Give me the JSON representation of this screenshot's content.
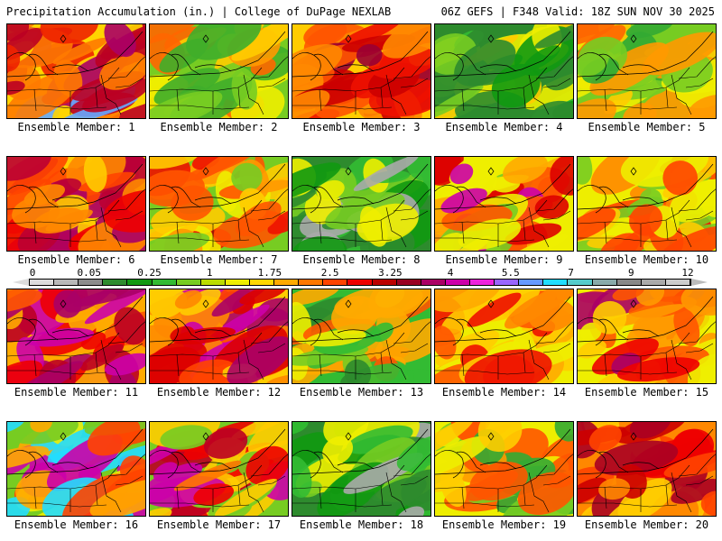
{
  "header": {
    "title": "Precipitation Accumulation (in.) | College of DuPage NEXLAB",
    "run_info": "06Z GEFS | F348 Valid: 18Z SUN NOV 30 2025"
  },
  "legend": {
    "ticks": [
      "0",
      "0.05",
      "0.25",
      "1",
      "1.75",
      "2.5",
      "3.25",
      "4",
      "5.5",
      "7",
      "9",
      "12"
    ],
    "colors": [
      "#dcdcdc",
      "#b8b8b8",
      "#8c8c8c",
      "#2e8b2e",
      "#119911",
      "#33bb33",
      "#77cc22",
      "#bbdd00",
      "#eeee00",
      "#ffd700",
      "#ffaa00",
      "#ff7700",
      "#ff4400",
      "#ee0000",
      "#bb0000",
      "#990022",
      "#aa0066",
      "#cc00aa",
      "#ee22dd",
      "#9966ff",
      "#6699ff",
      "#22ddff",
      "#55cccc",
      "#88aaaa",
      "#888888",
      "#aaaaaa",
      "#cccccc"
    ]
  },
  "members": [
    {
      "label": "Ensemble Member: 1",
      "palette": [
        "#ffd500",
        "#ff7a00",
        "#ee2200",
        "#bb0022",
        "#aa0066",
        "#66aaff"
      ]
    },
    {
      "label": "Ensemble Member: 2",
      "palette": [
        "#77cc22",
        "#3fae2a",
        "#eeee00",
        "#ffcc00",
        "#ff9900",
        "#ff6600"
      ]
    },
    {
      "label": "Ensemble Member: 3",
      "palette": [
        "#ffcc00",
        "#ff8800",
        "#ff5500",
        "#ee1100",
        "#cc0000",
        "#990033"
      ]
    },
    {
      "label": "Ensemble Member: 4",
      "palette": [
        "#2e8b2e",
        "#119911",
        "#33bb33",
        "#77cc22",
        "#eeee00",
        "#ffcc00"
      ]
    },
    {
      "label": "Ensemble Member: 5",
      "palette": [
        "#77cc22",
        "#33aa33",
        "#eeee00",
        "#ffcc00",
        "#ff9900",
        "#ff6600"
      ]
    },
    {
      "label": "Ensemble Member: 6",
      "palette": [
        "#ffcc00",
        "#ff8800",
        "#ff4400",
        "#ee0000",
        "#bb0033",
        "#aa0066"
      ]
    },
    {
      "label": "Ensemble Member: 7",
      "palette": [
        "#77cc22",
        "#eeee00",
        "#ffcc00",
        "#ff9900",
        "#ff5500",
        "#ee1100"
      ]
    },
    {
      "label": "Ensemble Member: 8",
      "palette": [
        "#2e8b2e",
        "#119911",
        "#33bb33",
        "#77cc22",
        "#aaaaaa",
        "#eeee00"
      ]
    },
    {
      "label": "Ensemble Member: 9",
      "palette": [
        "#eeee00",
        "#77cc22",
        "#ffaa00",
        "#ff5500",
        "#dd0000",
        "#cc00aa"
      ]
    },
    {
      "label": "Ensemble Member: 10",
      "palette": [
        "#eeee00",
        "#ffcc00",
        "#77cc22",
        "#ff8800",
        "#ff4400",
        "#ee0000"
      ]
    },
    {
      "label": "Ensemble Member: 11",
      "palette": [
        "#ffaa00",
        "#ff5500",
        "#ee0000",
        "#bb0022",
        "#aa0066",
        "#cc00aa"
      ]
    },
    {
      "label": "Ensemble Member: 12",
      "palette": [
        "#ffcc00",
        "#ff8800",
        "#ff4400",
        "#dd0000",
        "#aa0066",
        "#cc00aa"
      ]
    },
    {
      "label": "Ensemble Member: 13",
      "palette": [
        "#33bb33",
        "#2e8b2e",
        "#77cc22",
        "#eeee00",
        "#ffaa00",
        "#ff5500"
      ]
    },
    {
      "label": "Ensemble Member: 14",
      "palette": [
        "#eeee00",
        "#ffcc00",
        "#ffaa00",
        "#ff8800",
        "#ff5500",
        "#ee1100"
      ]
    },
    {
      "label": "Ensemble Member: 15",
      "palette": [
        "#eeee00",
        "#ffcc00",
        "#ff9900",
        "#ff5500",
        "#ee0000",
        "#aa0066"
      ]
    },
    {
      "label": "Ensemble Member: 16",
      "palette": [
        "#77cc22",
        "#eeee00",
        "#ffaa00",
        "#ff4400",
        "#cc00aa",
        "#22ddff"
      ]
    },
    {
      "label": "Ensemble Member: 17",
      "palette": [
        "#77cc22",
        "#ffcc00",
        "#ff7700",
        "#ee0000",
        "#bb0022",
        "#cc00aa"
      ]
    },
    {
      "label": "Ensemble Member: 18",
      "palette": [
        "#2e8b2e",
        "#119911",
        "#33bb33",
        "#77cc22",
        "#aaaaaa",
        "#eeee00"
      ]
    },
    {
      "label": "Ensemble Member: 19",
      "palette": [
        "#eeee00",
        "#ffcc00",
        "#ff9900",
        "#77cc22",
        "#33aa33",
        "#ff5500"
      ]
    },
    {
      "label": "Ensemble Member: 20",
      "palette": [
        "#ff8800",
        "#ff4400",
        "#ee0000",
        "#cc0000",
        "#aa0022",
        "#ffcc00"
      ]
    }
  ]
}
